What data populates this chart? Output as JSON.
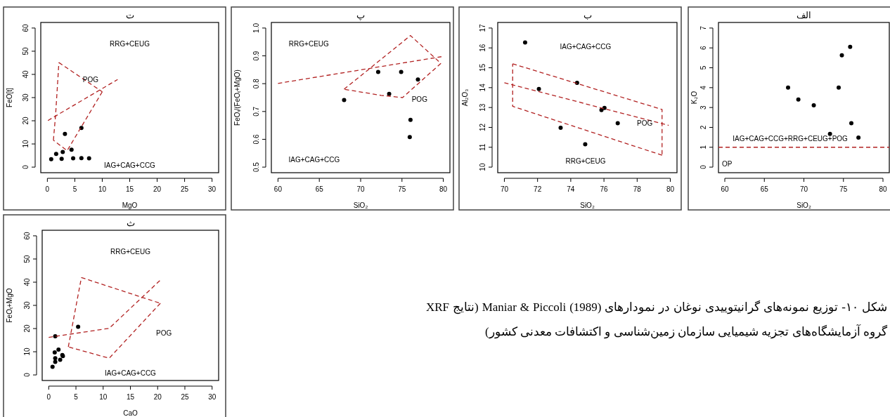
{
  "chart_data": [
    {
      "type": "scatter",
      "title": "الف",
      "xlabel": "SiO₂",
      "ylabel": "K₂O",
      "xlim": [
        59.2,
        80.8
      ],
      "ylim": [
        -0.28,
        7.28
      ],
      "xticks": [
        60,
        65,
        70,
        75,
        80
      ],
      "yticks": [
        0,
        1,
        2,
        3,
        4,
        5,
        6,
        7
      ],
      "series": [
        {
          "type": "scatter",
          "marker": "circle",
          "color": "#000000",
          "x": [
            68.0,
            69.3,
            71.25,
            74.4,
            74.8,
            75.85,
            76.0,
            76.9,
            73.3
          ],
          "values": [
            4.0,
            3.4,
            3.11,
            4.0,
            5.63,
            6.05,
            2.21,
            1.49,
            1.67
          ]
        }
      ],
      "ref_lines": [
        {
          "axis": "y",
          "value": 1,
          "color": "#b22222",
          "line_style": "dashed"
        }
      ],
      "annotations": [
        "IAG+CAG+CCG+RRG+CEUG+POG",
        "OP"
      ]
    },
    {
      "type": "scatter",
      "title": "ب",
      "xlabel": "SiO₂",
      "ylabel": "Al₂O₃",
      "xlim": [
        69.6,
        80.4
      ],
      "ylim": [
        9.72,
        17.28
      ],
      "xticks": [
        70,
        72,
        74,
        76,
        78,
        80
      ],
      "yticks": [
        10,
        11,
        12,
        13,
        14,
        15,
        16,
        17
      ],
      "series": [
        {
          "type": "scatter",
          "marker": "circle",
          "color": "#000000",
          "x": [
            71.25,
            72.08,
            74.38,
            73.39,
            74.87,
            75.85,
            76.03,
            76.83
          ],
          "values": [
            16.27,
            13.93,
            14.24,
            11.98,
            11.15,
            12.87,
            12.98,
            12.21
          ]
        },
        {
          "type": "line",
          "color": "#b22222",
          "line_style": "dashed",
          "x": [
            70.5,
            79.5,
            79.5
          ],
          "values": [
            15.2,
            12.9,
            10.6
          ]
        },
        {
          "type": "line",
          "color": "#b22222",
          "line_style": "dashed",
          "x": [
            79.5,
            70.5,
            70.5
          ],
          "values": [
            10.6,
            13.06,
            15.2
          ]
        },
        {
          "type": "line",
          "color": "#b22222",
          "line_style": "dashed",
          "x": [
            70.0,
            79.9
          ],
          "values": [
            14.25,
            12.1
          ]
        }
      ],
      "annotations": [
        "IAG+CAG+CCG",
        "POG",
        "RRG+CEUG"
      ]
    },
    {
      "type": "scatter",
      "title": "پ",
      "xlabel": "SiO₂",
      "ylabel": "FeOₜ/(FeOₜ+MgO)",
      "xlim": [
        59.2,
        80.8
      ],
      "ylim": [
        0.48,
        1.02
      ],
      "xticks": [
        60,
        65,
        70,
        75,
        80
      ],
      "yticks": [
        {
          "value": 0.5,
          "label": "0.5"
        },
        {
          "value": 0.6,
          "label": "0.6"
        },
        {
          "value": 0.7,
          "label": "0.7"
        },
        {
          "value": 0.8,
          "label": "0.8"
        },
        {
          "value": 0.9,
          "label": "0.9"
        },
        {
          "value": 1.0,
          "label": "1.0"
        }
      ],
      "series": [
        {
          "type": "scatter",
          "marker": "circle",
          "color": "#000000",
          "x": [
            68.0,
            72.12,
            74.9,
            73.45,
            76.93,
            76.03,
            75.94
          ],
          "values": [
            0.741,
            0.842,
            0.842,
            0.763,
            0.815,
            0.67,
            0.608
          ]
        },
        {
          "type": "line",
          "color": "#b22222",
          "line_style": "dashed",
          "x": [
            60.0,
            79.77
          ],
          "values": [
            0.801,
            0.897
          ]
        },
        {
          "type": "line",
          "color": "#b22222",
          "line_style": "dashed",
          "x": [
            68.0,
            76.03,
            79.71
          ],
          "values": [
            0.78,
            0.973,
            0.873
          ]
        },
        {
          "type": "line",
          "color": "#b22222",
          "line_style": "dashed",
          "x": [
            79.71,
            75.07,
            72.46,
            68.0
          ],
          "values": [
            0.873,
            0.75,
            0.758,
            0.78
          ]
        }
      ],
      "annotations": [
        "RRG+CEUG",
        "IAG+CAG+CCG",
        "POG"
      ]
    },
    {
      "type": "scatter",
      "title": "ت",
      "xlabel": "MgO",
      "ylabel": "FeO[t]",
      "xlim": [
        -1.2,
        31.2
      ],
      "ylim": [
        -2.4,
        62.4
      ],
      "xticks": [
        0,
        5,
        10,
        15,
        20,
        25,
        30
      ],
      "yticks": [
        0,
        10,
        20,
        30,
        40,
        50,
        60
      ],
      "series": [
        {
          "type": "scatter",
          "marker": "circle",
          "color": "#000000",
          "x": [
            0.7,
            1.6,
            2.6,
            2.8,
            3.2,
            4.4,
            4.7,
            6.2,
            6.2,
            7.6
          ],
          "values": [
            3.4,
            5.7,
            3.6,
            6.5,
            14.3,
            7.5,
            3.8,
            16.9,
            3.9,
            3.8
          ]
        },
        {
          "type": "line",
          "color": "#b22222",
          "line_style": "dashed",
          "x": [
            0.1,
            12.8
          ],
          "values": [
            20.1,
            37.8
          ]
        },
        {
          "type": "line",
          "color": "#b22222",
          "line_style": "dashed",
          "x": [
            2.1,
            10.0
          ],
          "values": [
            45.1,
            32.5
          ]
        },
        {
          "type": "line",
          "color": "#b22222",
          "line_style": "dashed",
          "x": [
            10.0,
            3.6,
            1.1
          ],
          "values": [
            32.5,
            7.1,
            11.6
          ]
        },
        {
          "type": "line",
          "color": "#b22222",
          "line_style": "dashed",
          "x": [
            1.1,
            1.5,
            2.1
          ],
          "values": [
            11.6,
            22.5,
            45.1
          ]
        }
      ],
      "annotations": [
        "RRG+CEUG",
        "POG",
        "IAG+CAG+CCG"
      ]
    },
    {
      "type": "scatter",
      "title": "ث",
      "xlabel": "CaO",
      "ylabel": "FeOₜ+MgO",
      "xlim": [
        -1.2,
        31.2
      ],
      "ylim": [
        -2.4,
        62.4
      ],
      "xticks": [
        0,
        5,
        10,
        15,
        20,
        25,
        30
      ],
      "yticks": [
        0,
        10,
        20,
        30,
        40,
        50,
        60
      ],
      "series": [
        {
          "type": "scatter",
          "marker": "circle",
          "color": "#000000",
          "x": [
            0.7,
            1.2,
            1.1,
            1.2,
            1.8,
            2.1,
            2.5,
            2.6,
            1.2,
            5.4
          ],
          "values": [
            3.5,
            5.6,
            9.7,
            7.2,
            10.9,
            6.5,
            8.6,
            8.1,
            16.7,
            20.8
          ]
        },
        {
          "type": "line",
          "color": "#b22222",
          "line_style": "dashed",
          "x": [
            0.0,
            11.1,
            20.5
          ],
          "values": [
            16.2,
            20.1,
            40.9
          ]
        },
        {
          "type": "line",
          "color": "#b22222",
          "line_style": "dashed",
          "x": [
            6.0,
            20.5
          ],
          "values": [
            42.0,
            30.9
          ]
        },
        {
          "type": "line",
          "color": "#b22222",
          "line_style": "dashed",
          "x": [
            20.5,
            11.1,
            3.6
          ],
          "values": [
            30.9,
            7.2,
            12.1
          ]
        },
        {
          "type": "line",
          "color": "#b22222",
          "line_style": "dashed",
          "x": [
            3.6,
            6.0
          ],
          "values": [
            12.1,
            42.0
          ]
        }
      ],
      "annotations": [
        "RRG+CEUG",
        "POG",
        "IAG+CAG+CCG"
      ]
    },
    {
      "type": "other",
      "annotations": [
        "شکل ۱۰- توزیع نمونه‌های گرانیتوییدی نوغان در نمودارهای Maniar & Piccoli (1989) (نتایج XRF گروه آزمایشگاه‌های تجزیه شیمیایی سازمان زمین‌شناسی و اکتشافات معدنی کشور)"
      ]
    }
  ]
}
